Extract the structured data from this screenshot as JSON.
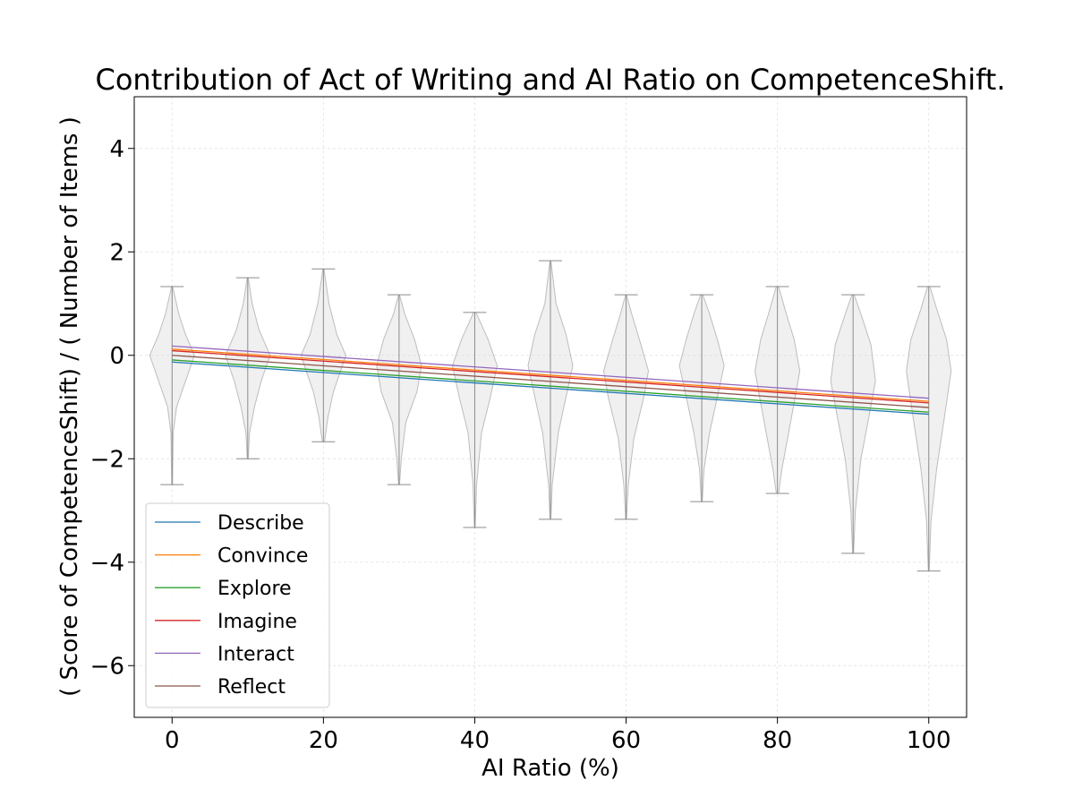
{
  "chart_data": {
    "type": "violin",
    "title": "Contribution of Act of Writing and AI Ratio on CompetenceShift.",
    "xlabel": "AI Ratio (%)",
    "ylabel": "( Score of CompetenceShift) / ( Number of Items )",
    "xlim": [
      -5,
      105
    ],
    "ylim": [
      -7,
      5
    ],
    "xticks": [
      0,
      20,
      40,
      60,
      80,
      100
    ],
    "yticks": [
      -6,
      -4,
      -2,
      0,
      2,
      4
    ],
    "ytick_labels": [
      "−6",
      "−4",
      "−2",
      "0",
      "2",
      "4"
    ],
    "grid": true,
    "legend_position": "lower-left",
    "violins": [
      {
        "x": 0,
        "min": -2.5,
        "max": 1.33,
        "profile": [
          [
            -2.5,
            0.02
          ],
          [
            -1.5,
            0.05
          ],
          [
            -1.0,
            0.2
          ],
          [
            -0.5,
            0.6
          ],
          [
            0.0,
            1.0
          ],
          [
            0.4,
            0.6
          ],
          [
            0.8,
            0.3
          ],
          [
            1.33,
            0.02
          ]
        ]
      },
      {
        "x": 10,
        "min": -2.0,
        "max": 1.5,
        "profile": [
          [
            -2.0,
            0.02
          ],
          [
            -1.5,
            0.08
          ],
          [
            -1.0,
            0.3
          ],
          [
            -0.5,
            0.6
          ],
          [
            0.0,
            1.0
          ],
          [
            0.5,
            0.5
          ],
          [
            1.0,
            0.2
          ],
          [
            1.5,
            0.02
          ]
        ]
      },
      {
        "x": 20,
        "min": -1.67,
        "max": 1.67,
        "profile": [
          [
            -1.67,
            0.05
          ],
          [
            -1.2,
            0.2
          ],
          [
            -0.7,
            0.45
          ],
          [
            -0.2,
            0.85
          ],
          [
            0.0,
            1.0
          ],
          [
            0.4,
            0.6
          ],
          [
            1.0,
            0.25
          ],
          [
            1.67,
            0.02
          ]
        ]
      },
      {
        "x": 30,
        "min": -2.5,
        "max": 1.17,
        "profile": [
          [
            -2.5,
            0.02
          ],
          [
            -2.0,
            0.1
          ],
          [
            -1.3,
            0.3
          ],
          [
            -0.7,
            0.8
          ],
          [
            -0.2,
            1.0
          ],
          [
            0.3,
            0.7
          ],
          [
            0.8,
            0.25
          ],
          [
            1.17,
            0.02
          ]
        ]
      },
      {
        "x": 40,
        "min": -3.33,
        "max": 0.83,
        "profile": [
          [
            -3.33,
            0.02
          ],
          [
            -2.5,
            0.08
          ],
          [
            -1.5,
            0.3
          ],
          [
            -0.8,
            0.7
          ],
          [
            -0.2,
            1.0
          ],
          [
            0.3,
            0.6
          ],
          [
            0.83,
            0.05
          ]
        ]
      },
      {
        "x": 50,
        "min": -3.17,
        "max": 1.83,
        "profile": [
          [
            -3.17,
            0.02
          ],
          [
            -2.5,
            0.08
          ],
          [
            -1.5,
            0.35
          ],
          [
            -0.8,
            0.7
          ],
          [
            -0.2,
            1.0
          ],
          [
            0.4,
            0.7
          ],
          [
            1.0,
            0.25
          ],
          [
            1.83,
            0.02
          ]
        ]
      },
      {
        "x": 60,
        "min": -3.17,
        "max": 1.17,
        "profile": [
          [
            -3.17,
            0.02
          ],
          [
            -2.5,
            0.1
          ],
          [
            -1.6,
            0.35
          ],
          [
            -0.8,
            0.8
          ],
          [
            -0.3,
            1.0
          ],
          [
            0.3,
            0.6
          ],
          [
            0.8,
            0.25
          ],
          [
            1.17,
            0.02
          ]
        ]
      },
      {
        "x": 70,
        "min": -2.83,
        "max": 1.17,
        "profile": [
          [
            -2.83,
            0.02
          ],
          [
            -2.2,
            0.1
          ],
          [
            -1.5,
            0.35
          ],
          [
            -0.8,
            0.7
          ],
          [
            -0.2,
            1.0
          ],
          [
            0.3,
            0.7
          ],
          [
            0.8,
            0.35
          ],
          [
            1.17,
            0.05
          ]
        ]
      },
      {
        "x": 80,
        "min": -2.67,
        "max": 1.33,
        "profile": [
          [
            -2.67,
            0.05
          ],
          [
            -2.2,
            0.2
          ],
          [
            -1.5,
            0.5
          ],
          [
            -0.8,
            0.8
          ],
          [
            -0.3,
            1.0
          ],
          [
            0.3,
            0.75
          ],
          [
            0.8,
            0.4
          ],
          [
            1.33,
            0.05
          ]
        ]
      },
      {
        "x": 90,
        "min": -3.83,
        "max": 1.17,
        "profile": [
          [
            -3.83,
            0.02
          ],
          [
            -3.0,
            0.1
          ],
          [
            -2.0,
            0.35
          ],
          [
            -1.2,
            0.7
          ],
          [
            -0.5,
            1.0
          ],
          [
            0.2,
            0.8
          ],
          [
            0.8,
            0.35
          ],
          [
            1.17,
            0.05
          ]
        ]
      },
      {
        "x": 100,
        "min": -4.17,
        "max": 1.33,
        "profile": [
          [
            -4.17,
            0.02
          ],
          [
            -3.2,
            0.1
          ],
          [
            -2.2,
            0.35
          ],
          [
            -1.2,
            0.7
          ],
          [
            -0.3,
            1.0
          ],
          [
            0.3,
            0.8
          ],
          [
            0.9,
            0.35
          ],
          [
            1.33,
            0.05
          ]
        ]
      }
    ],
    "series": [
      {
        "name": "Describe",
        "color": "#1f77b4",
        "x": [
          0,
          100
        ],
        "y": [
          -0.13,
          -1.14
        ]
      },
      {
        "name": "Convince",
        "color": "#ff7f0e",
        "x": [
          0,
          100
        ],
        "y": [
          0.12,
          -0.89
        ]
      },
      {
        "name": "Explore",
        "color": "#2ca02c",
        "x": [
          0,
          100
        ],
        "y": [
          -0.09,
          -1.1
        ]
      },
      {
        "name": "Imagine",
        "color": "#d62728",
        "x": [
          0,
          100
        ],
        "y": [
          0.09,
          -0.92
        ]
      },
      {
        "name": "Interact",
        "color": "#9467bd",
        "x": [
          0,
          100
        ],
        "y": [
          0.18,
          -0.83
        ]
      },
      {
        "name": "Reflect",
        "color": "#8c564b",
        "x": [
          0,
          100
        ],
        "y": [
          0.0,
          -1.01
        ]
      }
    ]
  }
}
